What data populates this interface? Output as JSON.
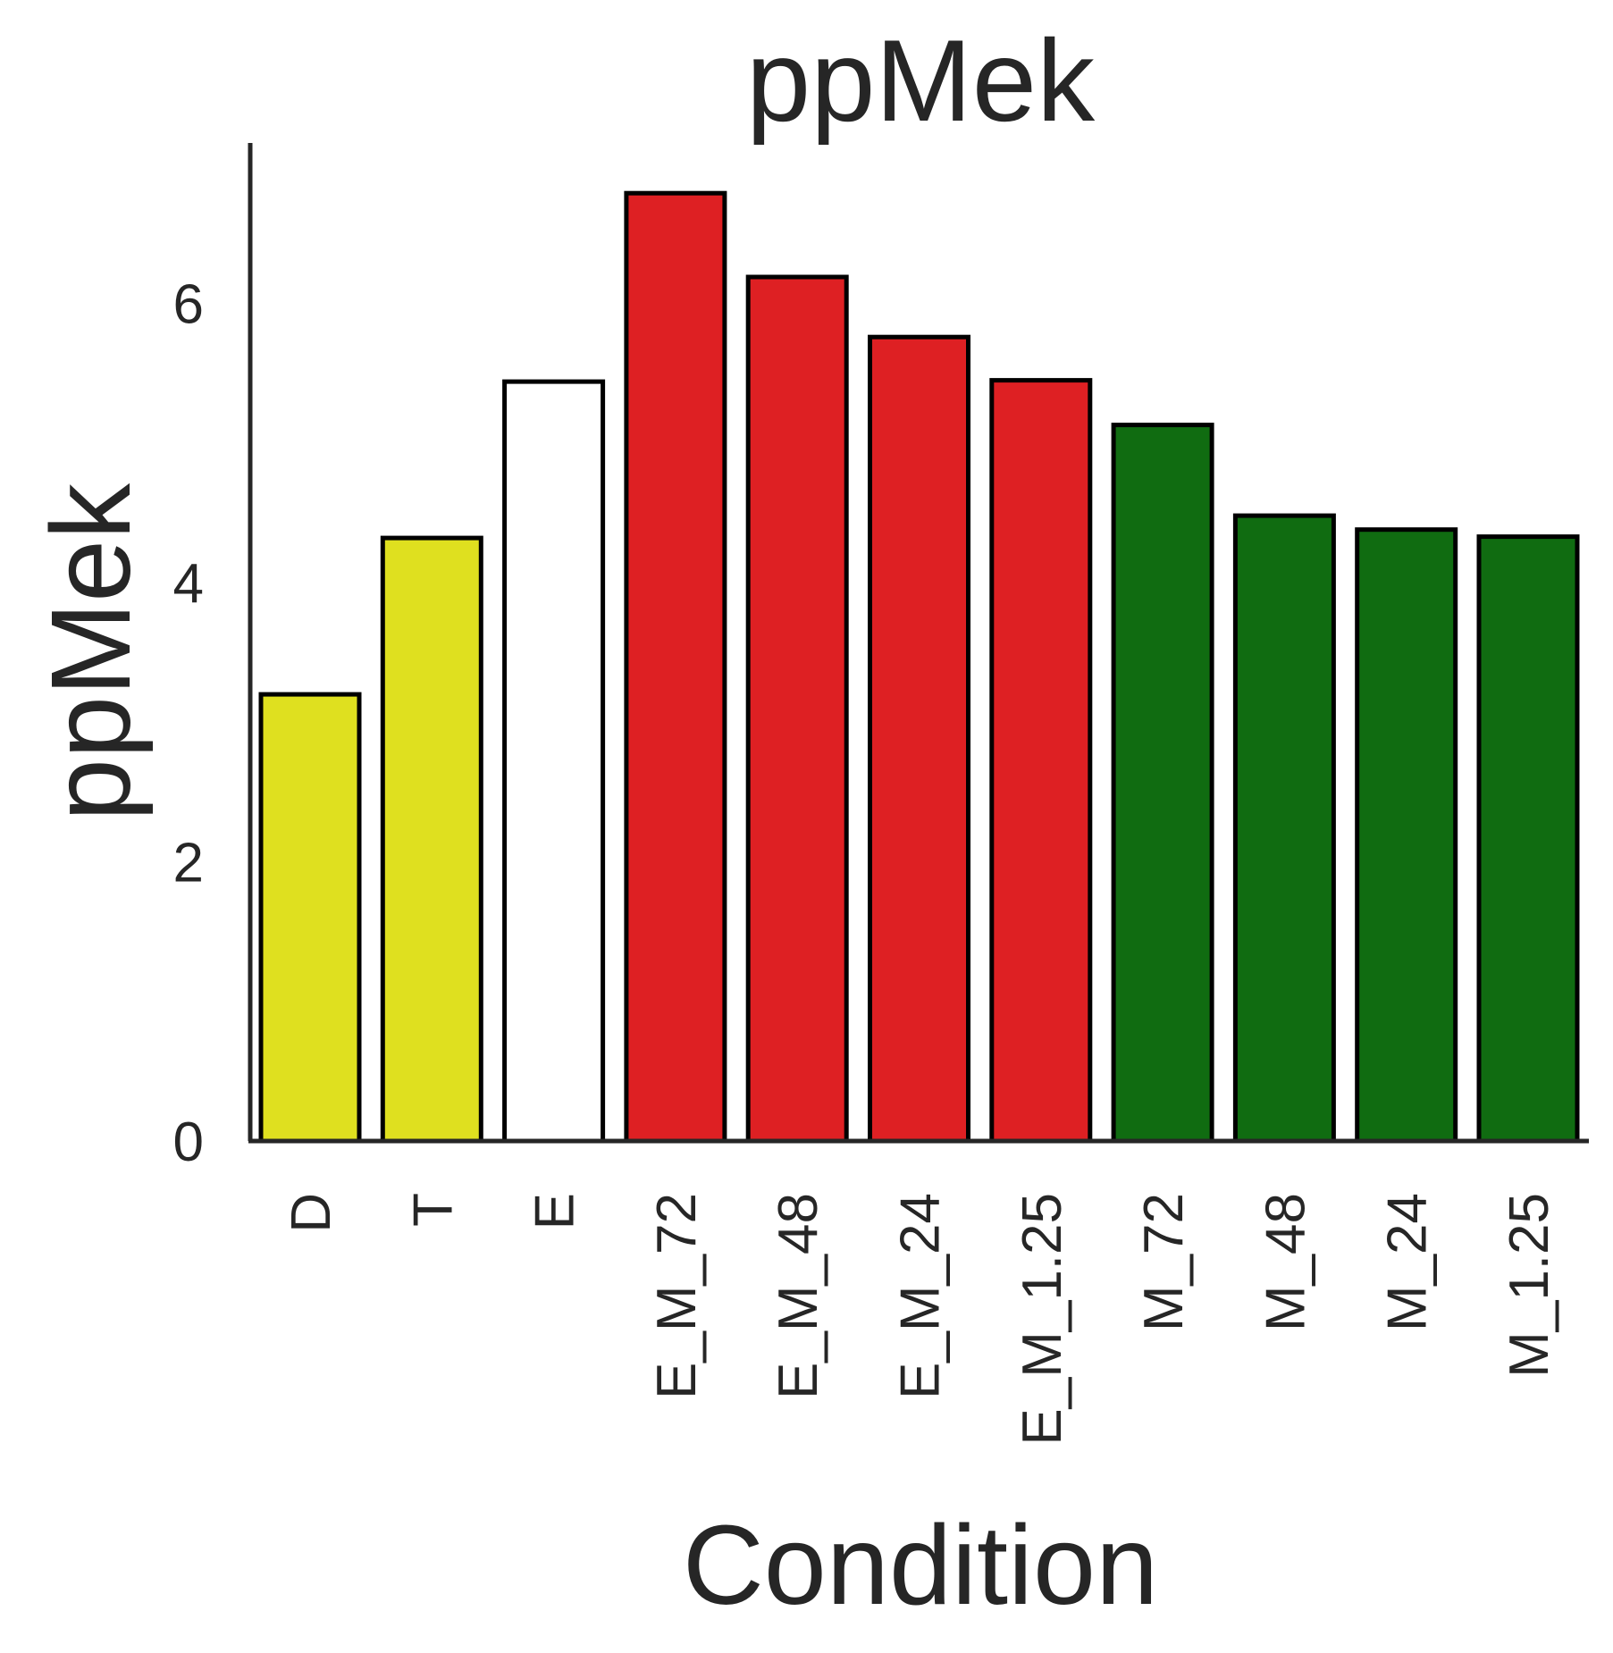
{
  "chart_data": {
    "type": "bar",
    "title": "ppMek",
    "xlabel": "Condition",
    "ylabel": "ppMek",
    "categories": [
      "D",
      "T",
      "E",
      "E_M_72",
      "E_M_48",
      "E_M_24",
      "E_M_1.25",
      "M_72",
      "M_48",
      "M_24",
      "M_1.25"
    ],
    "values": [
      3.2,
      4.32,
      5.44,
      6.79,
      6.19,
      5.76,
      5.45,
      5.13,
      4.48,
      4.38,
      4.33
    ],
    "colors": [
      "#dfe01f",
      "#dfe01f",
      "#ffffff",
      "#de2023",
      "#de2023",
      "#de2023",
      "#de2023",
      "#106c11",
      "#106c11",
      "#106c11",
      "#106c11"
    ],
    "y_ticks": [
      0,
      2,
      4,
      6
    ],
    "ylim": [
      0,
      7.15
    ],
    "grid": false,
    "legend": "none"
  }
}
